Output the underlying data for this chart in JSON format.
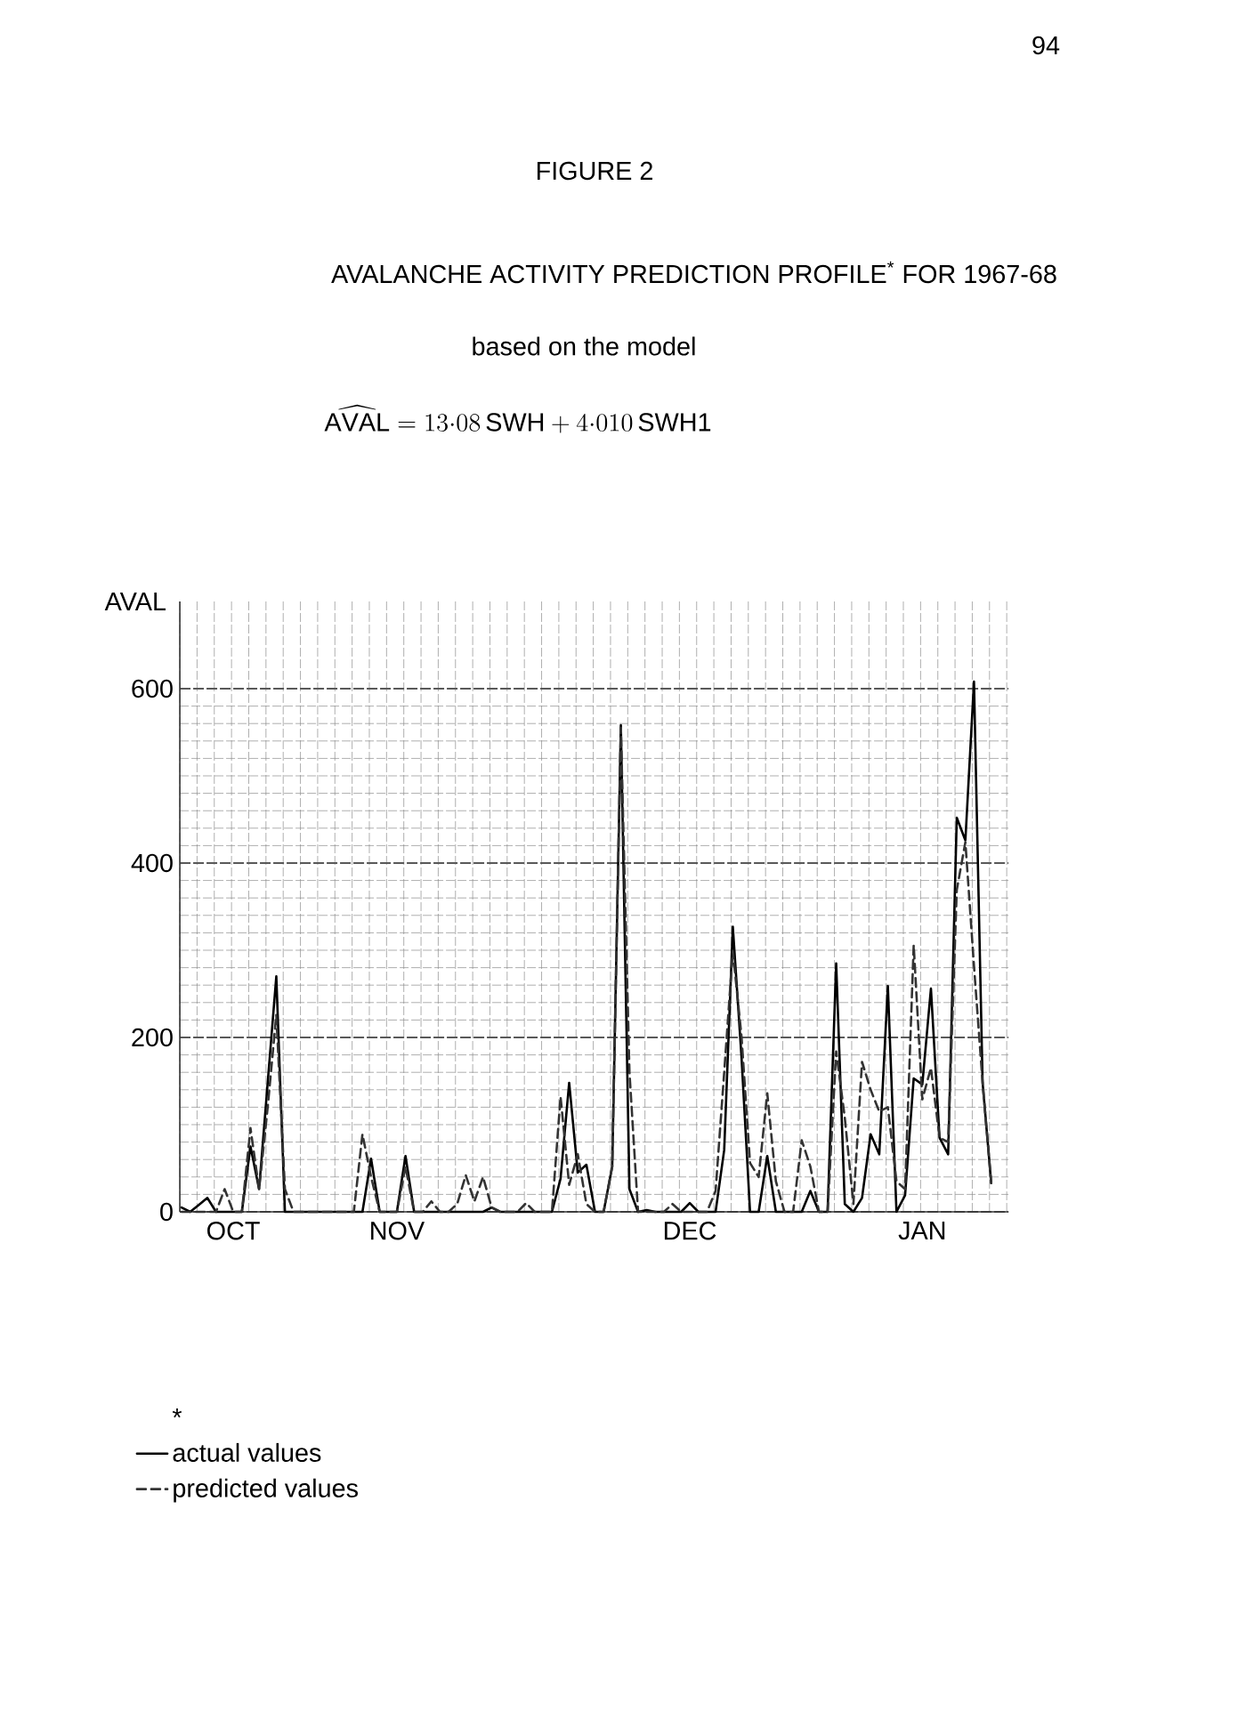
{
  "chart_data": {
    "type": "line",
    "title": "AVALANCHE ACTIVITY PREDICTION PROFILE$^{*}$ FOR 1967-68",
    "annotations": [
      "94",
      "FIGURE 2",
      "based on the model",
      "\\widehat{\\mathrm{AVAL}} = 13{\\cdot}08\\,\\mathrm{SWH} + 4{\\cdot}010\\,\\mathrm{SWH1}"
    ],
    "ylabel": "AVAL",
    "legend_title": "*",
    "legend": "bottom left",
    "grid": true,
    "ylim": [
      0,
      700
    ],
    "yticks": [
      0,
      200,
      400,
      600
    ],
    "categories": [
      null,
      null,
      null,
      null,
      null,
      null,
      "OCT",
      null,
      null,
      null,
      null,
      null,
      null,
      null,
      null,
      null,
      null,
      null,
      null,
      null,
      null,
      null,
      null,
      null,
      null,
      "NOV",
      null,
      null,
      null,
      null,
      null,
      null,
      null,
      null,
      null,
      null,
      null,
      null,
      null,
      null,
      null,
      null,
      null,
      null,
      null,
      null,
      null,
      null,
      null,
      null,
      null,
      null,
      null,
      null,
      null,
      null,
      null,
      null,
      null,
      "DEC",
      null,
      null,
      null,
      null,
      null,
      null,
      null,
      null,
      null,
      null,
      null,
      null,
      null,
      null,
      null,
      null,
      null,
      null,
      null,
      null,
      null,
      null,
      null,
      null,
      null,
      null,
      "JAN",
      null,
      null,
      null,
      null,
      null,
      null,
      null,
      null
    ],
    "series": [
      {
        "name": "actual values",
        "color": "#000000",
        "line_style": "solid",
        "values": [
          5,
          0,
          8,
          16,
          0,
          0,
          0,
          0,
          75,
          26,
          148,
          270,
          0,
          0,
          0,
          0,
          0,
          0,
          0,
          0,
          0,
          0,
          61,
          0,
          0,
          0,
          64,
          0,
          0,
          0,
          0,
          0,
          0,
          0,
          0,
          0,
          5,
          0,
          0,
          0,
          0,
          0,
          0,
          0,
          38,
          148,
          45,
          54,
          0,
          0,
          52,
          558,
          26,
          0,
          2,
          0,
          0,
          0,
          0,
          10,
          0,
          0,
          0,
          71,
          327,
          179,
          0,
          0,
          64,
          0,
          0,
          0,
          0,
          24,
          0,
          0,
          285,
          9,
          0,
          16,
          89,
          66,
          259,
          0,
          19,
          153,
          146,
          256,
          85,
          66,
          452,
          426,
          608,
          148,
          33
        ]
      },
      {
        "name": "predicted values",
        "color": "#333333",
        "line_style": "dashed",
        "values": [
          0,
          0,
          0,
          0,
          0,
          26,
          0,
          0,
          96,
          26,
          120,
          226,
          26,
          0,
          0,
          0,
          0,
          0,
          0,
          0,
          0,
          89,
          40,
          0,
          0,
          0,
          52,
          0,
          0,
          12,
          0,
          0,
          9,
          42,
          12,
          40,
          5,
          0,
          0,
          0,
          10,
          0,
          0,
          0,
          132,
          31,
          66,
          9,
          0,
          0,
          52,
          555,
          160,
          0,
          0,
          0,
          0,
          9,
          0,
          0,
          0,
          0,
          24,
          160,
          299,
          202,
          56,
          40,
          136,
          35,
          0,
          0,
          82,
          52,
          0,
          0,
          184,
          108,
          9,
          172,
          140,
          115,
          120,
          35,
          26,
          306,
          129,
          165,
          85,
          80,
          369,
          424,
          282,
          148,
          33
        ]
      }
    ]
  }
}
